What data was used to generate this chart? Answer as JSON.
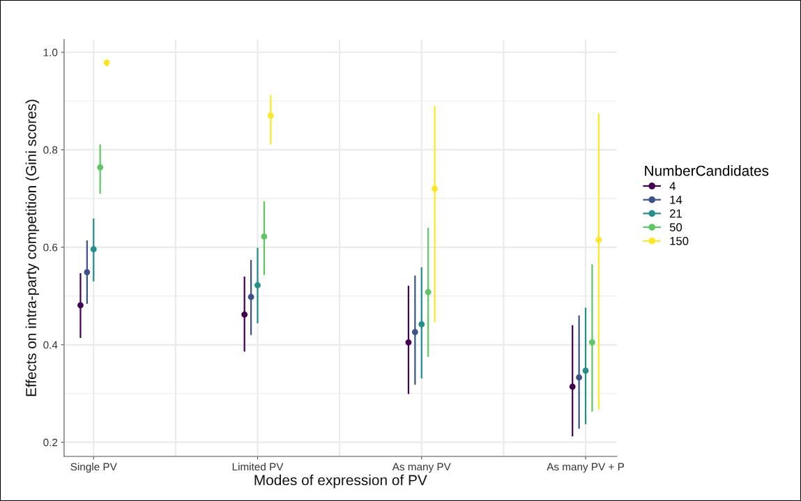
{
  "chart_data": {
    "type": "scatter",
    "xlabel": "Modes of expression of PV",
    "ylabel": "Effects on intra-party competition (Gini scores)",
    "legend_title": "NumberCandidates",
    "categories": [
      "Single PV",
      "Limited PV",
      "As many PV",
      "As many PV + P"
    ],
    "series": [
      {
        "name": "4",
        "color": "#440154",
        "values": [
          0.481,
          0.462,
          0.405,
          0.314
        ],
        "errors": [
          [
            0.414,
            0.547
          ],
          [
            0.386,
            0.54
          ],
          [
            0.299,
            0.521
          ],
          [
            0.212,
            0.44
          ]
        ]
      },
      {
        "name": "14",
        "color": "#3b528b",
        "values": [
          0.549,
          0.498,
          0.426,
          0.333
        ],
        "errors": [
          [
            0.484,
            0.614
          ],
          [
            0.42,
            0.574
          ],
          [
            0.318,
            0.542
          ],
          [
            0.228,
            0.46
          ]
        ]
      },
      {
        "name": "21",
        "color": "#21908c",
        "values": [
          0.596,
          0.522,
          0.442,
          0.347
        ],
        "errors": [
          [
            0.53,
            0.659
          ],
          [
            0.444,
            0.599
          ],
          [
            0.331,
            0.559
          ],
          [
            0.237,
            0.476
          ]
        ]
      },
      {
        "name": "50",
        "color": "#5dc863",
        "values": [
          0.764,
          0.622,
          0.508,
          0.405
        ],
        "errors": [
          [
            0.71,
            0.811
          ],
          [
            0.543,
            0.694
          ],
          [
            0.375,
            0.64
          ],
          [
            0.263,
            0.565
          ]
        ]
      },
      {
        "name": "150",
        "color": "#fde725",
        "values": [
          0.979,
          0.87,
          0.72,
          0.615
        ],
        "errors": [
          [
            0.971,
            0.983
          ],
          [
            0.811,
            0.912
          ],
          [
            0.446,
            0.89
          ],
          [
            0.267,
            0.875
          ]
        ]
      }
    ],
    "ylim": [
      0.171,
      1.026
    ],
    "yticks": [
      0.2,
      0.4,
      0.6,
      0.8,
      {
        "value": 1,
        "label": "1.0"
      }
    ],
    "grid": true,
    "legend": "right",
    "marker": "circle"
  }
}
